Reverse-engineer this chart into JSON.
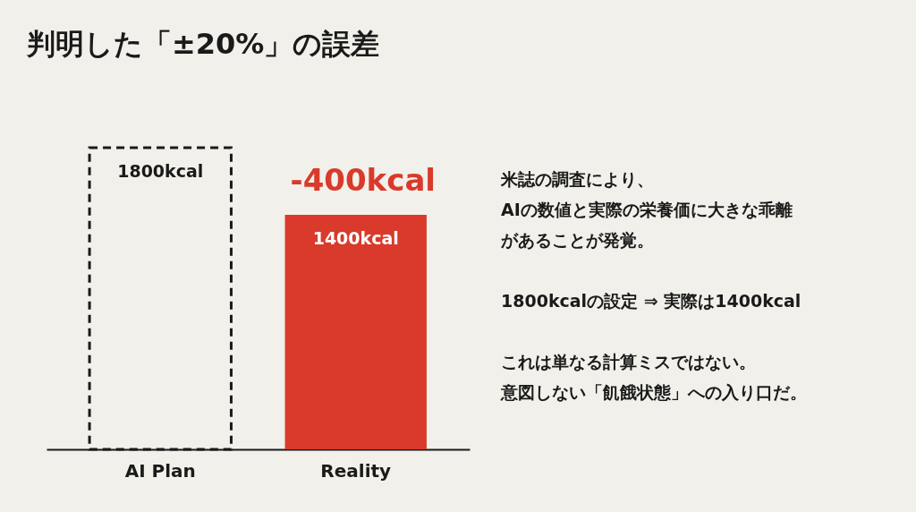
{
  "chart_data": {
    "type": "bar",
    "title": "判明した「±20%」の誤差",
    "categories": [
      "AI Plan",
      "Reality"
    ],
    "series": [
      {
        "color": "#1a1a1a",
        "line_style": "dashed",
        "values": [
          1800,
          null
        ],
        "value_labels": [
          "1800kcal",
          null
        ]
      },
      {
        "color": "#d93a2b",
        "values": [
          null,
          1400
        ],
        "value_labels": [
          null,
          "1400kcal"
        ]
      }
    ],
    "annotations": [
      "-400kcal",
      "米誌の調査により、",
      "AIの数値と実際の栄養価に大きな乖離",
      "があることが発覚。",
      "1800kcalの設定 ⇒ 実際は1400kcal",
      "これは単なる計算ミスではない。",
      "意図しない「飢餓状態」への入り口だ。"
    ]
  }
}
